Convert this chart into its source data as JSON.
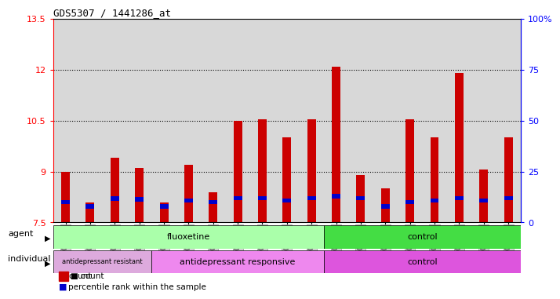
{
  "title": "GDS5307 / 1441286_at",
  "samples": [
    "GSM1059591",
    "GSM1059592",
    "GSM1059593",
    "GSM1059594",
    "GSM1059577",
    "GSM1059578",
    "GSM1059579",
    "GSM1059580",
    "GSM1059581",
    "GSM1059582",
    "GSM1059583",
    "GSM1059561",
    "GSM1059562",
    "GSM1059563",
    "GSM1059564",
    "GSM1059565",
    "GSM1059566",
    "GSM1059567",
    "GSM1059568"
  ],
  "red_values": [
    9.0,
    8.1,
    9.4,
    9.1,
    8.1,
    9.2,
    8.4,
    10.5,
    10.55,
    10.0,
    10.55,
    12.1,
    8.9,
    8.5,
    10.55,
    10.0,
    11.9,
    9.05,
    10.0
  ],
  "blue_values": [
    8.1,
    7.98,
    8.2,
    8.18,
    7.98,
    8.15,
    8.1,
    8.22,
    8.22,
    8.15,
    8.22,
    8.28,
    8.22,
    7.98,
    8.1,
    8.15,
    8.22,
    8.15,
    8.22
  ],
  "y_min": 7.5,
  "y_max": 13.5,
  "y_ticks_red": [
    7.5,
    9.0,
    10.5,
    12.0,
    13.5
  ],
  "y_ticks_blue": [
    0,
    25,
    50,
    75,
    100
  ],
  "agent_groups": [
    {
      "label": "fluoxetine",
      "start": 0,
      "end": 11,
      "color": "#AAFFAA"
    },
    {
      "label": "control",
      "start": 11,
      "end": 19,
      "color": "#44DD44"
    }
  ],
  "individual_groups": [
    {
      "label": "antidepressant resistant",
      "start": 0,
      "end": 4,
      "color": "#DDAADD"
    },
    {
      "label": "antidepressant responsive",
      "start": 4,
      "end": 11,
      "color": "#EE88EE"
    },
    {
      "label": "control",
      "start": 11,
      "end": 19,
      "color": "#DD55DD"
    }
  ],
  "bar_color": "#CC0000",
  "blue_color": "#0000CC",
  "bg_color": "#D8D8D8",
  "legend_count": "count",
  "legend_percentile": "percentile rank within the sample"
}
